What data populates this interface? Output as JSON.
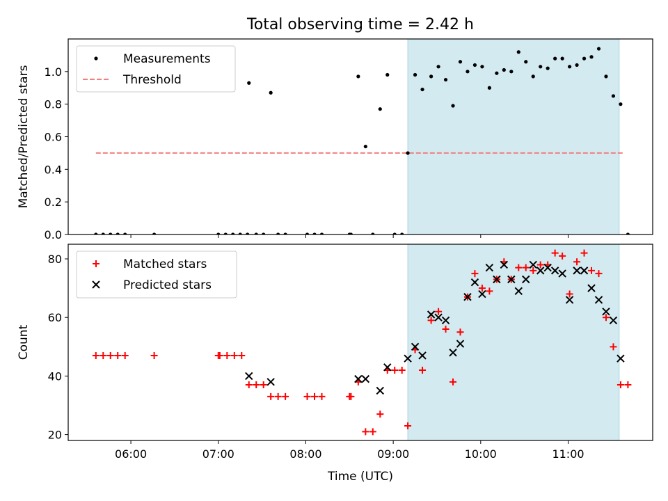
{
  "figure": {
    "title": "Total observing time = 2.42 h"
  },
  "chart_data": [
    {
      "type": "scatter",
      "title": "Total observing time = 2.42 h",
      "xlabel": "",
      "ylabel": "Matched/Predicted stars",
      "xlim": [
        "05:17",
        "11:58"
      ],
      "ylim": [
        0,
        1.2
      ],
      "xticks": [],
      "yticks": [
        0.0,
        0.2,
        0.4,
        0.6,
        0.8,
        1.0
      ],
      "ytick_labels": [
        "0.0",
        "0.2",
        "0.4",
        "0.6",
        "0.8",
        "1.0"
      ],
      "shaded_span": [
        "09:10",
        "11:35"
      ],
      "shade_color": "#d3eaf0",
      "threshold": {
        "name": "Threshold",
        "y": 0.5,
        "x_start": "05:36",
        "x_end": "11:38",
        "color": "#f08080",
        "style": "dashed"
      },
      "legend": {
        "position": "upper-left",
        "entries": [
          "Measurements",
          "Threshold"
        ]
      },
      "series": [
        {
          "name": "Measurements",
          "color": "#000000",
          "marker": "dot",
          "points": [
            [
              "05:36",
              0.0
            ],
            [
              "05:41",
              0.0
            ],
            [
              "05:46",
              0.0
            ],
            [
              "05:51",
              0.0
            ],
            [
              "05:56",
              0.0
            ],
            [
              "06:16",
              0.0
            ],
            [
              "07:00",
              0.0
            ],
            [
              "07:05",
              0.0
            ],
            [
              "07:10",
              0.0
            ],
            [
              "07:15",
              0.0
            ],
            [
              "07:20",
              0.0
            ],
            [
              "07:21",
              0.93
            ],
            [
              "07:26",
              0.0
            ],
            [
              "07:31",
              0.0
            ],
            [
              "07:36",
              0.87
            ],
            [
              "07:41",
              0.0
            ],
            [
              "07:46",
              0.0
            ],
            [
              "08:01",
              0.0
            ],
            [
              "08:06",
              0.0
            ],
            [
              "08:11",
              0.0
            ],
            [
              "08:30",
              0.0
            ],
            [
              "08:31",
              0.0
            ],
            [
              "08:36",
              0.97
            ],
            [
              "08:41",
              0.54
            ],
            [
              "08:46",
              0.0
            ],
            [
              "08:51",
              0.77
            ],
            [
              "08:56",
              0.98
            ],
            [
              "09:01",
              0.0
            ],
            [
              "09:06",
              0.0
            ],
            [
              "09:10",
              0.5
            ],
            [
              "09:15",
              0.98
            ],
            [
              "09:20",
              0.89
            ],
            [
              "09:26",
              0.97
            ],
            [
              "09:31",
              1.03
            ],
            [
              "09:36",
              0.95
            ],
            [
              "09:41",
              0.79
            ],
            [
              "09:46",
              1.06
            ],
            [
              "09:51",
              1.0
            ],
            [
              "09:56",
              1.04
            ],
            [
              "10:01",
              1.03
            ],
            [
              "10:06",
              0.9
            ],
            [
              "10:11",
              0.99
            ],
            [
              "10:16",
              1.01
            ],
            [
              "10:21",
              1.0
            ],
            [
              "10:26",
              1.12
            ],
            [
              "10:31",
              1.06
            ],
            [
              "10:36",
              0.97
            ],
            [
              "10:41",
              1.03
            ],
            [
              "10:46",
              1.02
            ],
            [
              "10:51",
              1.08
            ],
            [
              "10:56",
              1.08
            ],
            [
              "11:01",
              1.03
            ],
            [
              "11:06",
              1.04
            ],
            [
              "11:11",
              1.08
            ],
            [
              "11:16",
              1.09
            ],
            [
              "11:21",
              1.14
            ],
            [
              "11:26",
              0.97
            ],
            [
              "11:31",
              0.85
            ],
            [
              "11:36",
              0.8
            ],
            [
              "11:41",
              0.0
            ]
          ]
        }
      ]
    },
    {
      "type": "scatter",
      "title": "",
      "xlabel": "Time (UTC)",
      "ylabel": "Count",
      "xlim": [
        "05:17",
        "11:58"
      ],
      "ylim": [
        18,
        85
      ],
      "xticks": [
        "06:00",
        "07:00",
        "08:00",
        "09:00",
        "10:00",
        "11:00"
      ],
      "yticks": [
        20,
        40,
        60,
        80
      ],
      "ytick_labels": [
        "20",
        "40",
        "60",
        "80"
      ],
      "shaded_span": [
        "09:10",
        "11:35"
      ],
      "shade_color": "#d3eaf0",
      "legend": {
        "position": "upper-left",
        "entries": [
          "Matched stars",
          "Predicted stars"
        ]
      },
      "series": [
        {
          "name": "Matched stars",
          "color": "#ff0000",
          "marker": "plus",
          "points": [
            [
              "05:36",
              47
            ],
            [
              "05:41",
              47
            ],
            [
              "05:46",
              47
            ],
            [
              "05:51",
              47
            ],
            [
              "05:56",
              47
            ],
            [
              "06:16",
              47
            ],
            [
              "07:00",
              47
            ],
            [
              "07:01",
              47
            ],
            [
              "07:06",
              47
            ],
            [
              "07:11",
              47
            ],
            [
              "07:16",
              47
            ],
            [
              "07:21",
              37
            ],
            [
              "07:26",
              37
            ],
            [
              "07:31",
              37
            ],
            [
              "07:36",
              33
            ],
            [
              "07:41",
              33
            ],
            [
              "07:46",
              33
            ],
            [
              "08:01",
              33
            ],
            [
              "08:06",
              33
            ],
            [
              "08:11",
              33
            ],
            [
              "08:30",
              33
            ],
            [
              "08:31",
              33
            ],
            [
              "08:36",
              38
            ],
            [
              "08:41",
              21
            ],
            [
              "08:46",
              21
            ],
            [
              "08:51",
              27
            ],
            [
              "08:56",
              42
            ],
            [
              "09:01",
              42
            ],
            [
              "09:06",
              42
            ],
            [
              "09:10",
              23
            ],
            [
              "09:15",
              49
            ],
            [
              "09:20",
              42
            ],
            [
              "09:26",
              59
            ],
            [
              "09:31",
              62
            ],
            [
              "09:36",
              56
            ],
            [
              "09:41",
              38
            ],
            [
              "09:46",
              55
            ],
            [
              "09:51",
              67
            ],
            [
              "09:56",
              75
            ],
            [
              "10:01",
              70
            ],
            [
              "10:06",
              69
            ],
            [
              "10:11",
              73
            ],
            [
              "10:16",
              79
            ],
            [
              "10:21",
              73
            ],
            [
              "10:26",
              77
            ],
            [
              "10:31",
              77
            ],
            [
              "10:36",
              76
            ],
            [
              "10:41",
              78
            ],
            [
              "10:46",
              78
            ],
            [
              "10:51",
              82
            ],
            [
              "10:56",
              81
            ],
            [
              "11:01",
              68
            ],
            [
              "11:06",
              79
            ],
            [
              "11:11",
              82
            ],
            [
              "11:16",
              76
            ],
            [
              "11:21",
              75
            ],
            [
              "11:26",
              60
            ],
            [
              "11:31",
              50
            ],
            [
              "11:36",
              37
            ],
            [
              "11:41",
              37
            ]
          ]
        },
        {
          "name": "Predicted stars",
          "color": "#000000",
          "marker": "x",
          "points": [
            [
              "07:21",
              40
            ],
            [
              "07:36",
              38
            ],
            [
              "08:36",
              39
            ],
            [
              "08:41",
              39
            ],
            [
              "08:51",
              35
            ],
            [
              "08:56",
              43
            ],
            [
              "09:10",
              46
            ],
            [
              "09:15",
              50
            ],
            [
              "09:20",
              47
            ],
            [
              "09:26",
              61
            ],
            [
              "09:31",
              60
            ],
            [
              "09:36",
              59
            ],
            [
              "09:41",
              48
            ],
            [
              "09:46",
              51
            ],
            [
              "09:51",
              67
            ],
            [
              "09:56",
              72
            ],
            [
              "10:01",
              68
            ],
            [
              "10:06",
              77
            ],
            [
              "10:11",
              73
            ],
            [
              "10:16",
              78
            ],
            [
              "10:21",
              73
            ],
            [
              "10:26",
              69
            ],
            [
              "10:31",
              73
            ],
            [
              "10:36",
              78
            ],
            [
              "10:41",
              76
            ],
            [
              "10:46",
              77
            ],
            [
              "10:51",
              76
            ],
            [
              "10:56",
              75
            ],
            [
              "11:01",
              66
            ],
            [
              "11:06",
              76
            ],
            [
              "11:11",
              76
            ],
            [
              "11:16",
              70
            ],
            [
              "11:21",
              66
            ],
            [
              "11:26",
              62
            ],
            [
              "11:31",
              59
            ],
            [
              "11:36",
              46
            ]
          ]
        }
      ]
    }
  ]
}
